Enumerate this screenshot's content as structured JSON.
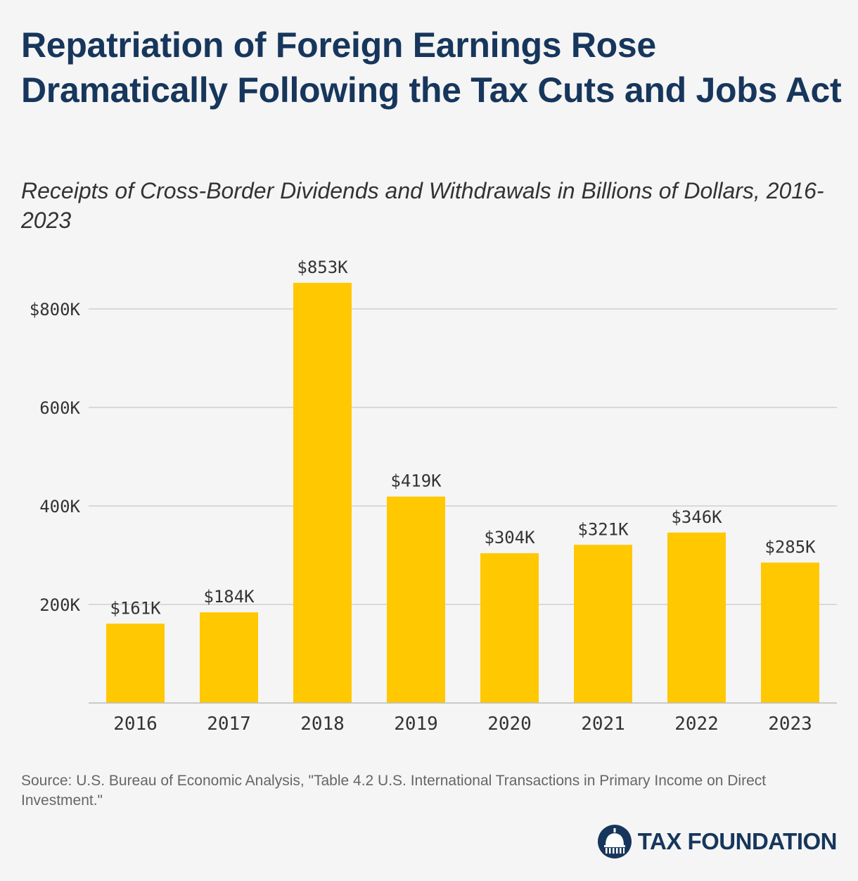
{
  "chart_data": {
    "type": "bar",
    "title": "Repatriation of Foreign Earnings Rose Dramatically Following the Tax Cuts and Jobs Act",
    "subtitle": "Receipts of Cross-Border Dividends and Withdrawals in Billions of Dollars, 2016-2023",
    "categories": [
      "2016",
      "2017",
      "2018",
      "2019",
      "2020",
      "2021",
      "2022",
      "2023"
    ],
    "values": [
      161,
      184,
      853,
      419,
      304,
      321,
      346,
      285
    ],
    "data_labels": [
      "$161K",
      "$184K",
      "$853K",
      "$419K",
      "$304K",
      "$321K",
      "$346K",
      "$285K"
    ],
    "yticks": [
      {
        "value": 200,
        "label": "200K"
      },
      {
        "value": 400,
        "label": "400K"
      },
      {
        "value": 600,
        "label": "600K"
      },
      {
        "value": 800,
        "label": "$800K"
      }
    ],
    "ylim": [
      0,
      900
    ],
    "xlabel": "",
    "ylabel": "",
    "grid": true,
    "bar_color": "#ffc800",
    "grid_color": "#d0d0d0"
  },
  "source": "Source: U.S. Bureau of Economic Analysis, \"Table 4.2 U.S. International Transactions in Primary Income on Direct Investment.\"",
  "logo": {
    "text": "TAX FOUNDATION",
    "icon": "capitol-dome-icon"
  },
  "colors": {
    "title": "#17365c",
    "background": "#f5f5f5"
  }
}
